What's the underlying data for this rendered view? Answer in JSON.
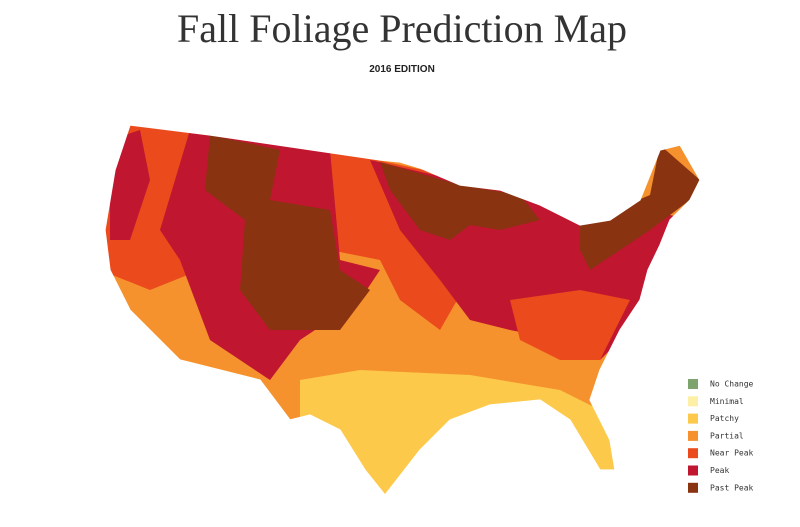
{
  "header": {
    "title": "Fall Foliage Prediction Map",
    "subtitle": "2016 EDITION"
  },
  "legend": [
    {
      "label": "No Change",
      "color": "#7ea46e"
    },
    {
      "label": "Minimal",
      "color": "#fdf0a6"
    },
    {
      "label": "Patchy",
      "color": "#fcc94a"
    },
    {
      "label": "Partial",
      "color": "#f5922e"
    },
    {
      "label": "Near Peak",
      "color": "#ea4a1c"
    },
    {
      "label": "Peak",
      "color": "#c0162f"
    },
    {
      "label": "Past Peak",
      "color": "#8a3311"
    }
  ]
}
